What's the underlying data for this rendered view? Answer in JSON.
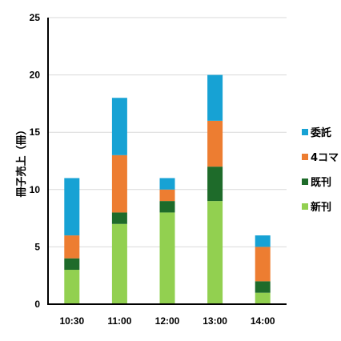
{
  "chart_data": {
    "type": "bar",
    "stacked": true,
    "categories": [
      "10:30",
      "11:00",
      "12:00",
      "13:00",
      "14:00"
    ],
    "series": [
      {
        "name": "新刊",
        "color": "#92d050",
        "values": [
          3,
          7,
          8,
          9,
          1
        ]
      },
      {
        "name": "既刊",
        "color": "#1e6b2a",
        "values": [
          1,
          1,
          1,
          3,
          1
        ]
      },
      {
        "name": "4コマ",
        "color": "#ed7d31",
        "values": [
          2,
          5,
          1,
          4,
          3
        ]
      },
      {
        "name": "委託",
        "color": "#17a2d4",
        "values": [
          5,
          5,
          1,
          4,
          1
        ]
      }
    ],
    "ylabel": "冊子売上（冊）",
    "xlabel": "",
    "title": "",
    "ylim": [
      0,
      25
    ],
    "yticks": [
      0,
      5,
      10,
      15,
      20,
      25
    ],
    "grid": true,
    "legend_position": "right",
    "legend_order": [
      "委託",
      "4コマ",
      "既刊",
      "新刊"
    ]
  }
}
